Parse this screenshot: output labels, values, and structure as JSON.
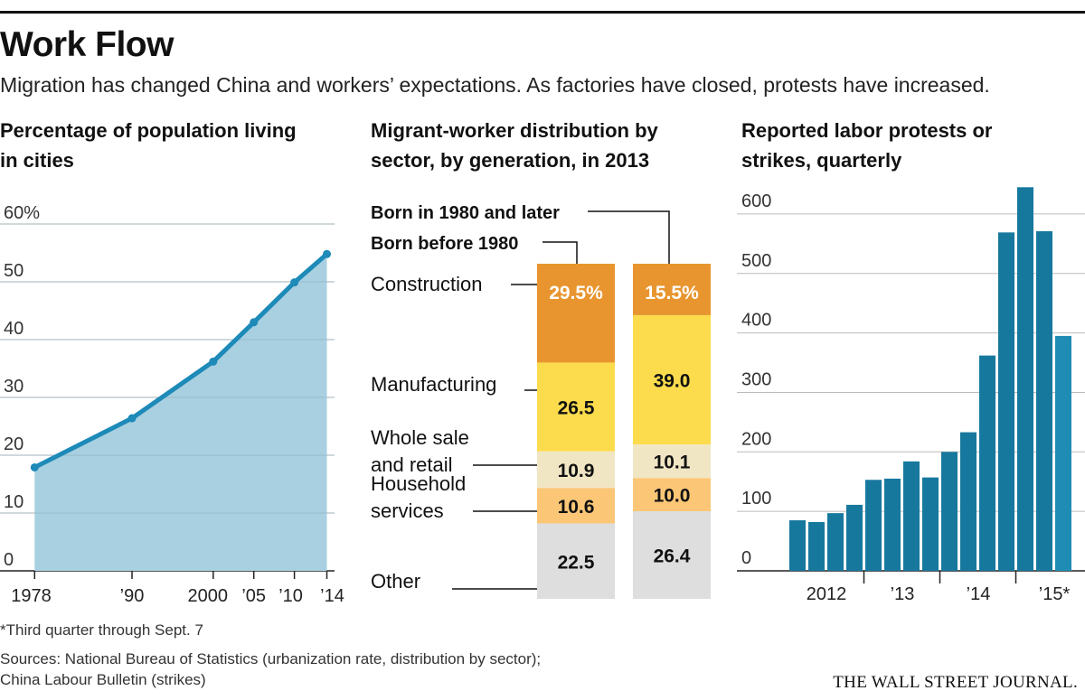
{
  "header": {
    "title": "Work Flow",
    "subtitle": "Migration has changed China and workers’ expectations. As factories have closed, protests have increased."
  },
  "colors": {
    "area_fill": "#a8d0e0",
    "line": "#1d8ab8",
    "bar": "#17789e",
    "construction": "#e8952f",
    "manufacturing": "#fcdc4d",
    "wholesale": "#f1e6c4",
    "household": "#fbc777",
    "other": "#dedede"
  },
  "chart_data": [
    {
      "type": "area",
      "title_lines": [
        "Percentage of population living",
        "in cities"
      ],
      "ylim": [
        0,
        60
      ],
      "yticks": [
        {
          "value": 0,
          "label": "0"
        },
        {
          "value": 10,
          "label": "10"
        },
        {
          "value": 20,
          "label": "20"
        },
        {
          "value": 30,
          "label": "30"
        },
        {
          "value": 40,
          "label": "40"
        },
        {
          "value": 50,
          "label": "50"
        },
        {
          "value": 60,
          "label": "60%"
        }
      ],
      "xlim": [
        1977.3,
        2014.5
      ],
      "xticks": [
        {
          "value": 1978,
          "label": "1978"
        },
        {
          "value": 1990,
          "label": "’90"
        },
        {
          "value": 2000,
          "label": "2000"
        },
        {
          "value": 2005,
          "label": "’05"
        },
        {
          "value": 2010,
          "label": "’10"
        },
        {
          "value": 2014,
          "label": "’14"
        }
      ],
      "x": [
        1978,
        1990,
        2000,
        2005,
        2010,
        2014
      ],
      "values": [
        17.9,
        26.4,
        36.2,
        43.0,
        49.9,
        54.8
      ]
    },
    {
      "type": "bar",
      "stacked": true,
      "title_lines": [
        "Migrant-worker distribution by",
        "sector, by generation, in 2013"
      ],
      "series_labels": [
        "Born before 1980",
        "Born in 1980  and later"
      ],
      "categories": [
        "Construction",
        "Manufacturing",
        "Whole sale and retail",
        "Household services",
        "Other"
      ],
      "category_label_lines": [
        [
          "Construction"
        ],
        [
          "Manufacturing"
        ],
        [
          "Whole sale",
          "and retail"
        ],
        [
          "Household",
          "services"
        ],
        [
          "Other"
        ]
      ],
      "series": [
        {
          "name": "Born before 1980",
          "values": [
            29.5,
            26.5,
            10.9,
            10.6,
            22.5
          ],
          "labels": [
            "29.5%",
            "26.5",
            "10.9",
            "10.6",
            "22.5"
          ]
        },
        {
          "name": "Born in 1980  and later",
          "values": [
            15.5,
            39.0,
            10.1,
            10.0,
            26.4
          ],
          "labels": [
            "15.5%",
            "39.0",
            "10.1",
            "10.0",
            "26.4"
          ]
        }
      ]
    },
    {
      "type": "bar",
      "title_lines": [
        "Reported labor protests or",
        "strikes, quarterly"
      ],
      "ylim": [
        0,
        650
      ],
      "yticks": [
        {
          "value": 0,
          "label": "0"
        },
        {
          "value": 100,
          "label": "100"
        },
        {
          "value": 200,
          "label": "200"
        },
        {
          "value": 300,
          "label": "300"
        },
        {
          "value": 400,
          "label": "400"
        },
        {
          "value": 500,
          "label": "500"
        },
        {
          "value": 600,
          "label": "600"
        }
      ],
      "categories": [
        "2012 Q1",
        "2012 Q2",
        "2012 Q3",
        "2012 Q4",
        "2013 Q1",
        "2013 Q2",
        "2013 Q3",
        "2013 Q4",
        "2014 Q1",
        "2014 Q2",
        "2014 Q3",
        "2014 Q4",
        "2015 Q1",
        "2015 Q2",
        "2015 Q3*"
      ],
      "values": [
        85,
        82,
        97,
        111,
        153,
        155,
        184,
        157,
        200,
        233,
        362,
        569,
        645,
        571,
        395
      ],
      "year_labels": [
        {
          "label": "2012",
          "index": 0
        },
        {
          "label": "’13",
          "index": 4
        },
        {
          "label": "’14",
          "index": 8
        },
        {
          "label": "’15*",
          "index": 12
        }
      ]
    }
  ],
  "footer": {
    "footnote": "*Third quarter through Sept. 7",
    "sources_line1": "Sources: National Bureau of Statistics (urbanization rate, distribution by sector);",
    "sources_line2": "China Labour Bulletin (strikes)",
    "publisher": "THE WALL STREET JOURNAL."
  }
}
